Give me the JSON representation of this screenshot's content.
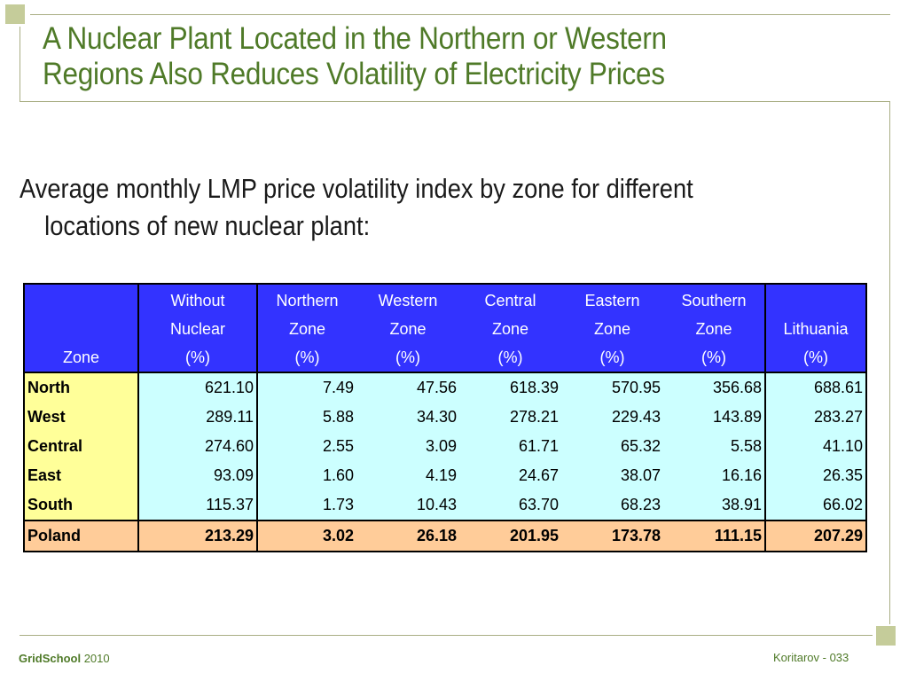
{
  "slide": {
    "title_line1": "A Nuclear Plant Located in the Northern or Western",
    "title_line2": "Regions Also Reduces Volatility of Electricity Prices",
    "subtitle_line1": "Average monthly LMP price volatility index by zone for different",
    "subtitle_line2": "locations of new nuclear plant:",
    "colors": {
      "title": "#4f7a28",
      "header_bg": "#3333ff",
      "zone_col_bg": "#ffff99",
      "cell_bg": "#ccffff",
      "total_row_bg": "#ffcc99"
    }
  },
  "table": {
    "zone_header": "Zone",
    "columns": [
      {
        "l1": "Without",
        "l2": "Nuclear",
        "l3": "(%)"
      },
      {
        "l1": "Northern",
        "l2": "Zone",
        "l3": "(%)"
      },
      {
        "l1": "Western",
        "l2": "Zone",
        "l3": "(%)"
      },
      {
        "l1": "Central",
        "l2": "Zone",
        "l3": "(%)"
      },
      {
        "l1": "Eastern",
        "l2": "Zone",
        "l3": "(%)"
      },
      {
        "l1": "Southern",
        "l2": "Zone",
        "l3": "(%)"
      },
      {
        "l1": "",
        "l2": "Lithuania",
        "l3": "(%)"
      }
    ],
    "rows": [
      {
        "zone": "North",
        "values": [
          "621.10",
          "7.49",
          "47.56",
          "618.39",
          "570.95",
          "356.68",
          "688.61"
        ]
      },
      {
        "zone": "West",
        "values": [
          "289.11",
          "5.88",
          "34.30",
          "278.21",
          "229.43",
          "143.89",
          "283.27"
        ]
      },
      {
        "zone": "Central",
        "values": [
          "274.60",
          "2.55",
          "3.09",
          "61.71",
          "65.32",
          "5.58",
          "41.10"
        ]
      },
      {
        "zone": "East",
        "values": [
          "93.09",
          "1.60",
          "4.19",
          "24.67",
          "38.07",
          "16.16",
          "26.35"
        ]
      },
      {
        "zone": "South",
        "values": [
          "115.37",
          "1.73",
          "10.43",
          "63.70",
          "68.23",
          "38.91",
          "66.02"
        ]
      }
    ],
    "total_row": {
      "zone": "Poland",
      "values": [
        "213.29",
        "3.02",
        "26.18",
        "201.95",
        "173.78",
        "111.15",
        "207.29"
      ]
    }
  },
  "footer": {
    "brand": "GridSchool",
    "year": "2010",
    "author_page": "Koritarov  - 033"
  }
}
